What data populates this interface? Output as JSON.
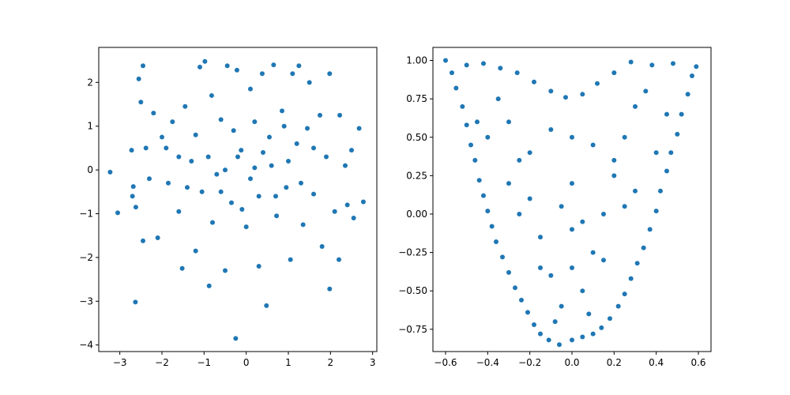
{
  "chart_data": [
    {
      "type": "scatter",
      "title": "",
      "xlabel": "",
      "ylabel": "",
      "xlim": [
        -3.5,
        3.1
      ],
      "ylim": [
        -4.15,
        2.8
      ],
      "xticks": [
        -3,
        -2,
        -1,
        0,
        1,
        2,
        3
      ],
      "xtick_labels": [
        "−3",
        "−2",
        "−1",
        "0",
        "1",
        "2",
        "3"
      ],
      "yticks": [
        -4,
        -3,
        -2,
        -1,
        0,
        1,
        2
      ],
      "ytick_labels": [
        "−4",
        "−3",
        "−2",
        "−1",
        "0",
        "1",
        "2"
      ],
      "grid": false,
      "color": "#1f77b4",
      "series": [
        {
          "name": "",
          "points": [
            [
              -3.23,
              -0.05
            ],
            [
              -3.05,
              -0.98
            ],
            [
              -2.63,
              -3.02
            ],
            [
              -2.45,
              2.38
            ],
            [
              -2.55,
              2.08
            ],
            [
              -2.5,
              1.55
            ],
            [
              -2.45,
              -1.62
            ],
            [
              -2.62,
              -0.85
            ],
            [
              -2.72,
              0.45
            ],
            [
              -2.7,
              -0.6
            ],
            [
              -2.68,
              -0.38
            ],
            [
              -2.38,
              0.5
            ],
            [
              -2.3,
              -0.2
            ],
            [
              -2.2,
              1.3
            ],
            [
              -2.1,
              -1.55
            ],
            [
              -2.0,
              0.75
            ],
            [
              -1.9,
              0.5
            ],
            [
              -1.85,
              -0.3
            ],
            [
              -1.75,
              1.1
            ],
            [
              -1.6,
              -0.95
            ],
            [
              -1.52,
              -2.25
            ],
            [
              -1.45,
              1.45
            ],
            [
              -1.3,
              0.2
            ],
            [
              -1.2,
              -1.85
            ],
            [
              -1.1,
              2.35
            ],
            [
              -1.05,
              -0.5
            ],
            [
              -0.98,
              2.48
            ],
            [
              -0.88,
              -2.65
            ],
            [
              -0.82,
              1.7
            ],
            [
              -0.7,
              -0.1
            ],
            [
              -0.6,
              1.15
            ],
            [
              -0.5,
              -2.3
            ],
            [
              -0.45,
              2.38
            ],
            [
              -0.35,
              -0.75
            ],
            [
              -0.25,
              -3.85
            ],
            [
              -0.22,
              2.28
            ],
            [
              -0.12,
              0.45
            ],
            [
              0.0,
              -1.3
            ],
            [
              0.1,
              1.85
            ],
            [
              0.2,
              0.05
            ],
            [
              0.3,
              -2.2
            ],
            [
              0.38,
              2.2
            ],
            [
              0.48,
              -3.1
            ],
            [
              0.55,
              0.75
            ],
            [
              0.65,
              2.4
            ],
            [
              0.72,
              -1.05
            ],
            [
              0.85,
              1.35
            ],
            [
              0.95,
              -0.4
            ],
            [
              1.05,
              -2.05
            ],
            [
              1.1,
              2.2
            ],
            [
              1.2,
              0.6
            ],
            [
              1.25,
              2.38
            ],
            [
              1.35,
              -1.25
            ],
            [
              1.45,
              0.95
            ],
            [
              1.5,
              2.0
            ],
            [
              1.6,
              -0.55
            ],
            [
              1.75,
              1.25
            ],
            [
              1.8,
              -1.75
            ],
            [
              1.9,
              0.3
            ],
            [
              1.98,
              2.2
            ],
            [
              1.98,
              -2.72
            ],
            [
              2.1,
              -0.95
            ],
            [
              2.2,
              -2.05
            ],
            [
              2.22,
              1.25
            ],
            [
              2.35,
              0.1
            ],
            [
              2.4,
              -0.8
            ],
            [
              2.5,
              0.45
            ],
            [
              2.55,
              -1.1
            ],
            [
              2.68,
              0.95
            ],
            [
              2.78,
              -0.73
            ],
            [
              -1.4,
              -0.4
            ],
            [
              -1.2,
              0.8
            ],
            [
              -0.9,
              0.3
            ],
            [
              -0.6,
              -0.5
            ],
            [
              -0.3,
              0.9
            ],
            [
              0.1,
              -0.2
            ],
            [
              0.4,
              0.4
            ],
            [
              0.7,
              -0.6
            ],
            [
              1.0,
              0.2
            ],
            [
              1.3,
              -0.3
            ],
            [
              -0.5,
              0.0
            ],
            [
              0.2,
              1.1
            ],
            [
              -0.1,
              -0.9
            ],
            [
              0.6,
              0.1
            ],
            [
              -0.8,
              -1.2
            ],
            [
              0.9,
              1.0
            ],
            [
              -1.6,
              0.3
            ],
            [
              1.6,
              0.5
            ],
            [
              -0.2,
              0.3
            ],
            [
              0.3,
              -0.6
            ]
          ]
        }
      ]
    },
    {
      "type": "scatter",
      "title": "",
      "xlabel": "",
      "ylabel": "",
      "xlim": [
        -0.66,
        0.66
      ],
      "ylim": [
        -0.895,
        1.085
      ],
      "xticks": [
        -0.6,
        -0.4,
        -0.2,
        0.0,
        0.2,
        0.4,
        0.6
      ],
      "xtick_labels": [
        "−0.6",
        "−0.4",
        "−0.2",
        "0.0",
        "0.2",
        "0.4",
        "0.6"
      ],
      "yticks": [
        -0.75,
        -0.5,
        -0.25,
        0.0,
        0.25,
        0.5,
        0.75,
        1.0
      ],
      "ytick_labels": [
        "−0.75",
        "−0.50",
        "−0.25",
        "0.00",
        "0.25",
        "0.50",
        "0.75",
        "1.00"
      ],
      "grid": false,
      "color": "#1f77b4",
      "series": [
        {
          "name": "",
          "points": [
            [
              -0.6,
              1.0
            ],
            [
              -0.57,
              0.92
            ],
            [
              -0.55,
              0.82
            ],
            [
              -0.52,
              0.7
            ],
            [
              -0.5,
              0.58
            ],
            [
              -0.48,
              0.45
            ],
            [
              -0.46,
              0.35
            ],
            [
              -0.44,
              0.22
            ],
            [
              -0.42,
              0.12
            ],
            [
              -0.4,
              0.02
            ],
            [
              -0.38,
              -0.08
            ],
            [
              -0.36,
              -0.18
            ],
            [
              -0.33,
              -0.28
            ],
            [
              -0.3,
              -0.38
            ],
            [
              -0.27,
              -0.48
            ],
            [
              -0.24,
              -0.56
            ],
            [
              -0.21,
              -0.64
            ],
            [
              -0.18,
              -0.72
            ],
            [
              -0.15,
              -0.78
            ],
            [
              -0.11,
              -0.82
            ],
            [
              -0.06,
              -0.85
            ],
            [
              0.0,
              -0.82
            ],
            [
              0.05,
              -0.8
            ],
            [
              0.1,
              -0.78
            ],
            [
              0.14,
              -0.74
            ],
            [
              0.18,
              -0.68
            ],
            [
              0.22,
              -0.6
            ],
            [
              0.25,
              -0.52
            ],
            [
              0.28,
              -0.42
            ],
            [
              0.31,
              -0.32
            ],
            [
              0.34,
              -0.22
            ],
            [
              0.37,
              -0.1
            ],
            [
              0.4,
              0.02
            ],
            [
              0.42,
              0.15
            ],
            [
              0.45,
              0.28
            ],
            [
              0.47,
              0.4
            ],
            [
              0.5,
              0.52
            ],
            [
              0.52,
              0.65
            ],
            [
              0.55,
              0.78
            ],
            [
              0.57,
              0.9
            ],
            [
              0.59,
              0.96
            ],
            [
              0.48,
              0.98
            ],
            [
              0.38,
              0.97
            ],
            [
              0.28,
              0.99
            ],
            [
              0.2,
              0.92
            ],
            [
              0.12,
              0.85
            ],
            [
              0.05,
              0.78
            ],
            [
              -0.03,
              0.76
            ],
            [
              -0.1,
              0.8
            ],
            [
              -0.18,
              0.86
            ],
            [
              -0.26,
              0.92
            ],
            [
              -0.34,
              0.95
            ],
            [
              -0.42,
              0.98
            ],
            [
              -0.5,
              0.97
            ],
            [
              -0.3,
              0.6
            ],
            [
              -0.25,
              0.35
            ],
            [
              -0.2,
              0.1
            ],
            [
              -0.15,
              -0.15
            ],
            [
              -0.1,
              -0.4
            ],
            [
              -0.05,
              -0.6
            ],
            [
              0.05,
              -0.5
            ],
            [
              0.1,
              -0.25
            ],
            [
              0.15,
              0.0
            ],
            [
              0.2,
              0.25
            ],
            [
              0.25,
              0.5
            ],
            [
              0.3,
              0.7
            ],
            [
              0.0,
              0.5
            ],
            [
              0.0,
              0.2
            ],
            [
              0.0,
              -0.1
            ],
            [
              0.0,
              -0.35
            ],
            [
              -0.35,
              0.75
            ],
            [
              0.35,
              0.8
            ],
            [
              -0.45,
              0.6
            ],
            [
              0.45,
              0.65
            ],
            [
              -0.1,
              0.55
            ],
            [
              0.1,
              0.45
            ],
            [
              -0.2,
              0.4
            ],
            [
              0.2,
              0.35
            ],
            [
              -0.05,
              0.05
            ],
            [
              0.05,
              -0.05
            ],
            [
              -0.15,
              -0.35
            ],
            [
              0.15,
              -0.3
            ],
            [
              -0.25,
              0.0
            ],
            [
              0.25,
              0.05
            ],
            [
              -0.08,
              -0.7
            ],
            [
              0.08,
              -0.65
            ],
            [
              0.3,
              0.15
            ],
            [
              -0.3,
              0.2
            ],
            [
              0.4,
              0.4
            ],
            [
              -0.4,
              0.5
            ]
          ]
        }
      ]
    }
  ]
}
